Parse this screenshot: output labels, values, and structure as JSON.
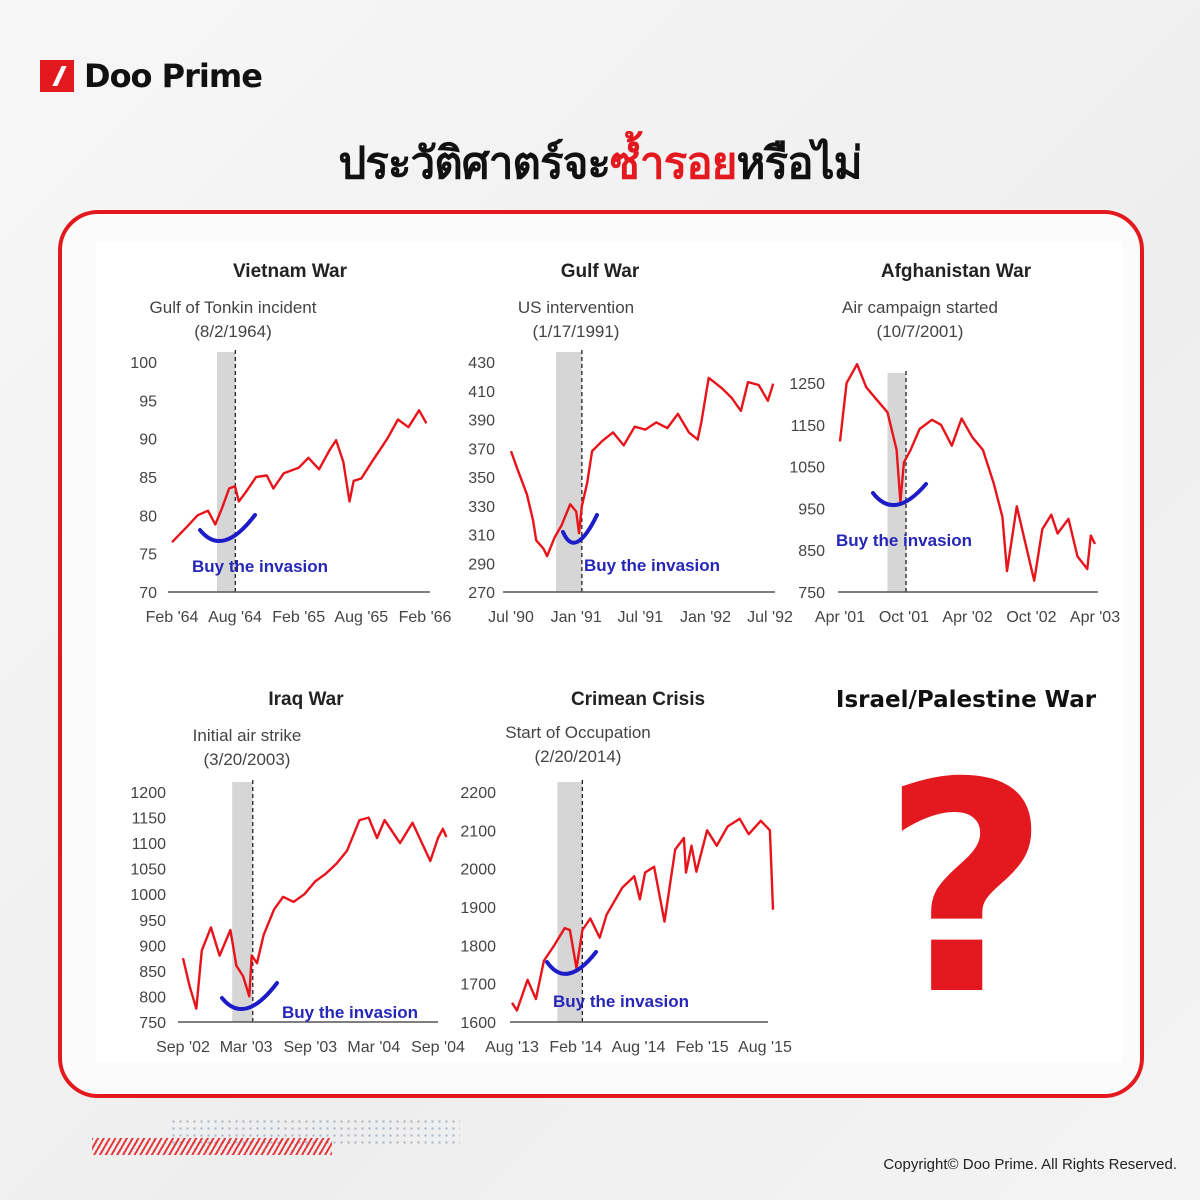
{
  "brand": {
    "name": "Doo Prime"
  },
  "headline": {
    "part1": "ประวัติศาตร์จะ",
    "highlight": "ซ้ำรอย",
    "part2": "หรือไม่"
  },
  "colors": {
    "brand_red": "#e3191f",
    "series_line": "#e8141b",
    "annotation_blue": "#1c1cc8",
    "event_band": "#d6d6d6"
  },
  "chart_data": [
    {
      "type": "line",
      "title": "Vietnam War",
      "event_label": "Gulf of Tonkin incident",
      "event_date_label": "(8/2/1964)",
      "event_date": "1964-08-02",
      "band_start": "1964-06-10",
      "annotation": "Buy the invasion",
      "ylim": [
        70,
        100
      ],
      "y_ticks": [
        100,
        95,
        90,
        85,
        80,
        75,
        70
      ],
      "x_ticks": [
        {
          "date": "1964-02-01",
          "label": "Feb '64"
        },
        {
          "date": "1964-08-01",
          "label": "Aug '64"
        },
        {
          "date": "1965-02-01",
          "label": "Feb '65"
        },
        {
          "date": "1965-08-01",
          "label": "Aug '65"
        },
        {
          "date": "1966-02-01",
          "label": "Feb '66"
        }
      ],
      "series": [
        {
          "values": [
            [
              "1964-02-01",
              76.5
            ],
            [
              "1964-03-15",
              78.5
            ],
            [
              "1964-04-15",
              80
            ],
            [
              "1964-05-15",
              80.6
            ],
            [
              "1964-06-05",
              78.8
            ],
            [
              "1964-06-25",
              81
            ],
            [
              "1964-07-15",
              83.5
            ],
            [
              "1964-08-01",
              83.8
            ],
            [
              "1964-08-12",
              81.8
            ],
            [
              "1964-09-01",
              83
            ],
            [
              "1964-10-01",
              85
            ],
            [
              "1964-11-01",
              85.2
            ],
            [
              "1964-11-20",
              83.5
            ],
            [
              "1964-12-20",
              85.5
            ],
            [
              "1965-02-01",
              86.2
            ],
            [
              "1965-03-01",
              87.5
            ],
            [
              "1965-04-01",
              86
            ],
            [
              "1965-05-01",
              88.5
            ],
            [
              "1965-05-20",
              89.8
            ],
            [
              "1965-06-10",
              87
            ],
            [
              "1965-06-28",
              81.8
            ],
            [
              "1965-07-10",
              84.5
            ],
            [
              "1965-08-01",
              84.8
            ],
            [
              "1965-09-01",
              87
            ],
            [
              "1965-10-15",
              90
            ],
            [
              "1965-11-15",
              92.5
            ],
            [
              "1965-12-15",
              91.5
            ],
            [
              "1966-01-15",
              93.7
            ],
            [
              "1966-02-05",
              92
            ]
          ]
        }
      ]
    },
    {
      "type": "line",
      "title": "Gulf War",
      "event_label": "US intervention",
      "event_date_label": "(1/17/1991)",
      "event_date": "1991-01-17",
      "band_start": "1990-11-05",
      "annotation": "Buy the invasion",
      "ylim": [
        270,
        430
      ],
      "y_ticks": [
        430,
        410,
        390,
        370,
        350,
        330,
        310,
        290,
        270
      ],
      "x_ticks": [
        {
          "date": "1990-07-01",
          "label": "Jul '90"
        },
        {
          "date": "1991-01-01",
          "label": "Jan '91"
        },
        {
          "date": "1991-07-01",
          "label": "Jul '91"
        },
        {
          "date": "1992-01-01",
          "label": "Jan '92"
        },
        {
          "date": "1992-07-01",
          "label": "Jul '92"
        }
      ],
      "series": [
        {
          "values": [
            [
              "1990-07-01",
              368
            ],
            [
              "1990-07-20",
              355
            ],
            [
              "1990-08-15",
              338
            ],
            [
              "1990-09-01",
              320
            ],
            [
              "1990-09-10",
              306
            ],
            [
              "1990-10-01",
              300
            ],
            [
              "1990-10-11",
              295
            ],
            [
              "1990-11-01",
              308
            ],
            [
              "1990-11-20",
              316
            ],
            [
              "1990-12-15",
              331
            ],
            [
              "1991-01-01",
              326
            ],
            [
              "1991-01-09",
              311
            ],
            [
              "1991-01-17",
              330
            ],
            [
              "1991-02-01",
              346
            ],
            [
              "1991-02-15",
              368
            ],
            [
              "1991-03-15",
              375
            ],
            [
              "1991-04-15",
              381
            ],
            [
              "1991-05-15",
              372
            ],
            [
              "1991-06-15",
              385
            ],
            [
              "1991-07-15",
              383
            ],
            [
              "1991-08-15",
              388
            ],
            [
              "1991-09-15",
              384
            ],
            [
              "1991-10-15",
              394
            ],
            [
              "1991-11-15",
              381
            ],
            [
              "1991-12-10",
              376
            ],
            [
              "1991-12-20",
              388
            ],
            [
              "1992-01-10",
              419
            ],
            [
              "1992-02-15",
              412
            ],
            [
              "1992-03-15",
              405
            ],
            [
              "1992-04-10",
              396
            ],
            [
              "1992-04-30",
              416
            ],
            [
              "1992-05-30",
              414
            ],
            [
              "1992-06-25",
              403
            ],
            [
              "1992-07-10",
              415
            ]
          ]
        }
      ]
    },
    {
      "type": "line",
      "title": "Afghanistan War",
      "event_label": "Air campaign started",
      "event_date_label": "(10/7/2001)",
      "event_date": "2001-10-07",
      "band_start": "2001-08-15",
      "annotation": "Buy the invasion",
      "ylim": [
        750,
        1250
      ],
      "y_ticks": [
        1250,
        1150,
        1050,
        950,
        850,
        750
      ],
      "x_ticks": [
        {
          "date": "2001-04-01",
          "label": "Apr '01"
        },
        {
          "date": "2001-10-01",
          "label": "Oct '01"
        },
        {
          "date": "2002-04-01",
          "label": "Apr '02"
        },
        {
          "date": "2002-10-01",
          "label": "Oct '02"
        },
        {
          "date": "2003-04-01",
          "label": "Apr '03"
        }
      ],
      "series": [
        {
          "values": [
            [
              "2001-04-01",
              1110
            ],
            [
              "2001-04-20",
              1250
            ],
            [
              "2001-05-20",
              1295
            ],
            [
              "2001-06-15",
              1240
            ],
            [
              "2001-07-15",
              1210
            ],
            [
              "2001-08-15",
              1180
            ],
            [
              "2001-09-10",
              1090
            ],
            [
              "2001-09-21",
              965
            ],
            [
              "2001-10-01",
              1060
            ],
            [
              "2001-10-20",
              1090
            ],
            [
              "2001-11-15",
              1140
            ],
            [
              "2001-12-01",
              1150
            ],
            [
              "2001-12-20",
              1162
            ],
            [
              "2002-01-15",
              1150
            ],
            [
              "2002-02-15",
              1100
            ],
            [
              "2002-03-15",
              1165
            ],
            [
              "2002-04-15",
              1120
            ],
            [
              "2002-05-15",
              1090
            ],
            [
              "2002-06-15",
              1010
            ],
            [
              "2002-07-10",
              930
            ],
            [
              "2002-07-23",
              800
            ],
            [
              "2002-08-20",
              955
            ],
            [
              "2002-09-10",
              880
            ],
            [
              "2002-10-09",
              777
            ],
            [
              "2002-11-01",
              900
            ],
            [
              "2002-11-27",
              935
            ],
            [
              "2002-12-15",
              890
            ],
            [
              "2003-01-15",
              925
            ],
            [
              "2003-02-10",
              835
            ],
            [
              "2003-03-10",
              805
            ],
            [
              "2003-03-20",
              885
            ],
            [
              "2003-04-01",
              865
            ]
          ]
        }
      ]
    },
    {
      "type": "line",
      "title": "Iraq War",
      "event_label": "Initial air strike",
      "event_date_label": "(3/20/2003)",
      "event_date": "2003-03-20",
      "band_start": "2003-01-20",
      "annotation": "Buy the invasion",
      "ylim": [
        750,
        1200
      ],
      "y_ticks": [
        1200,
        1150,
        1100,
        1050,
        1000,
        950,
        900,
        850,
        800,
        750
      ],
      "x_ticks": [
        {
          "date": "2002-09-01",
          "label": "Sep '02"
        },
        {
          "date": "2003-03-01",
          "label": "Mar '03"
        },
        {
          "date": "2003-09-01",
          "label": "Sep '03"
        },
        {
          "date": "2004-03-01",
          "label": "Mar '04"
        },
        {
          "date": "2004-09-01",
          "label": "Sep '04"
        }
      ],
      "series": [
        {
          "values": [
            [
              "2002-09-01",
              875
            ],
            [
              "2002-09-20",
              820
            ],
            [
              "2002-10-09",
              776
            ],
            [
              "2002-10-25",
              890
            ],
            [
              "2002-11-20",
              935
            ],
            [
              "2002-12-15",
              880
            ],
            [
              "2003-01-15",
              930
            ],
            [
              "2003-02-01",
              860
            ],
            [
              "2003-02-20",
              840
            ],
            [
              "2003-03-10",
              800
            ],
            [
              "2003-03-17",
              880
            ],
            [
              "2003-04-01",
              865
            ],
            [
              "2003-04-20",
              920
            ],
            [
              "2003-05-20",
              970
            ],
            [
              "2003-06-15",
              995
            ],
            [
              "2003-07-15",
              985
            ],
            [
              "2003-08-15",
              1000
            ],
            [
              "2003-09-15",
              1025
            ],
            [
              "2003-10-15",
              1040
            ],
            [
              "2003-11-15",
              1060
            ],
            [
              "2003-12-15",
              1085
            ],
            [
              "2004-01-20",
              1145
            ],
            [
              "2004-02-15",
              1150
            ],
            [
              "2004-03-10",
              1110
            ],
            [
              "2004-04-01",
              1145
            ],
            [
              "2004-05-15",
              1100
            ],
            [
              "2004-06-20",
              1140
            ],
            [
              "2004-08-10",
              1065
            ],
            [
              "2004-09-01",
              1110
            ],
            [
              "2004-09-15",
              1128
            ],
            [
              "2004-09-25",
              1112
            ]
          ]
        }
      ]
    },
    {
      "type": "line",
      "title": "Crimean Crisis",
      "event_label": "Start of Occupation",
      "event_date_label": "(2/20/2014)",
      "event_date": "2014-02-20",
      "band_start": "2013-12-10",
      "annotation": "Buy the invasion",
      "ylim": [
        1600,
        2200
      ],
      "y_ticks": [
        2200,
        2100,
        2000,
        1900,
        1800,
        1700,
        1600
      ],
      "x_ticks": [
        {
          "date": "2013-08-01",
          "label": "Aug '13"
        },
        {
          "date": "2014-02-01",
          "label": "Feb '14"
        },
        {
          "date": "2014-08-01",
          "label": "Aug '14"
        },
        {
          "date": "2015-02-01",
          "label": "Feb '15"
        },
        {
          "date": "2015-08-01",
          "label": "Aug '15"
        }
      ],
      "series": [
        {
          "values": [
            [
              "2013-08-01",
              1650
            ],
            [
              "2013-08-15",
              1630
            ],
            [
              "2013-09-15",
              1710
            ],
            [
              "2013-10-09",
              1660
            ],
            [
              "2013-11-01",
              1760
            ],
            [
              "2013-12-01",
              1800
            ],
            [
              "2013-12-31",
              1845
            ],
            [
              "2014-01-15",
              1840
            ],
            [
              "2014-02-03",
              1740
            ],
            [
              "2014-02-20",
              1840
            ],
            [
              "2014-03-15",
              1870
            ],
            [
              "2014-04-11",
              1820
            ],
            [
              "2014-05-01",
              1880
            ],
            [
              "2014-06-15",
              1950
            ],
            [
              "2014-07-20",
              1980
            ],
            [
              "2014-08-05",
              1920
            ],
            [
              "2014-08-20",
              1990
            ],
            [
              "2014-09-15",
              2005
            ],
            [
              "2014-10-15",
              1862
            ],
            [
              "2014-11-15",
              2050
            ],
            [
              "2014-12-10",
              2080
            ],
            [
              "2014-12-16",
              1990
            ],
            [
              "2015-01-01",
              2060
            ],
            [
              "2015-01-15",
              1992
            ],
            [
              "2015-02-15",
              2100
            ],
            [
              "2015-03-15",
              2060
            ],
            [
              "2015-04-15",
              2110
            ],
            [
              "2015-05-20",
              2130
            ],
            [
              "2015-06-15",
              2090
            ],
            [
              "2015-07-20",
              2125
            ],
            [
              "2015-08-15",
              2100
            ],
            [
              "2015-08-24",
              1893
            ]
          ]
        }
      ]
    }
  ],
  "placeholder": {
    "title": "Israel/Palestine War",
    "symbol": "?"
  },
  "footer": {
    "copyright": "Copyright© Doo Prime. All Rights Reserved."
  }
}
